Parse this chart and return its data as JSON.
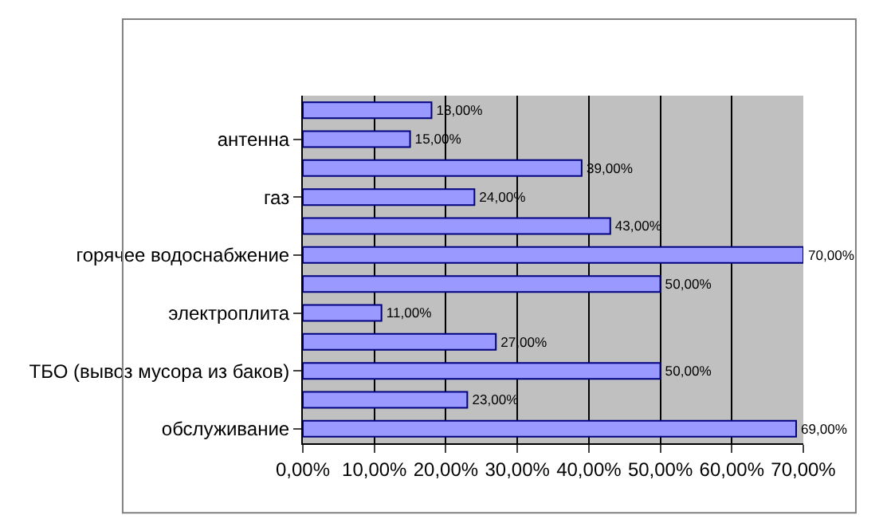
{
  "chart_data": {
    "type": "bar",
    "orientation": "horizontal",
    "categories": [
      null,
      "антенна",
      null,
      "газ",
      null,
      "горячее водоснабжение",
      null,
      "электроплита",
      null,
      "ТБО (вывоз мусора из баков)",
      null,
      "обслуживание"
    ],
    "values": [
      18,
      15,
      39,
      24,
      43,
      70,
      50,
      11,
      27,
      50,
      23,
      69
    ],
    "value_labels": [
      "18,00%",
      "15,00%",
      "39,00%",
      "24,00%",
      "43,00%",
      "70,00%",
      "50,00%",
      "11,00%",
      "27,00%",
      "50,00%",
      "23,00%",
      "69,00%"
    ],
    "color": "#9999ff",
    "xlim": [
      0,
      70
    ],
    "xticks": [
      {
        "value": 0,
        "label": "0,00%"
      },
      {
        "value": 10,
        "label": "10,00%"
      },
      {
        "value": 20,
        "label": "20,00%"
      },
      {
        "value": 30,
        "label": "30,00%"
      },
      {
        "value": 40,
        "label": "40,00%"
      },
      {
        "value": 50,
        "label": "50,00%"
      },
      {
        "value": 60,
        "label": "60,00%"
      },
      {
        "value": 70,
        "label": "70,00%"
      }
    ],
    "grid": "x",
    "legend": false
  }
}
